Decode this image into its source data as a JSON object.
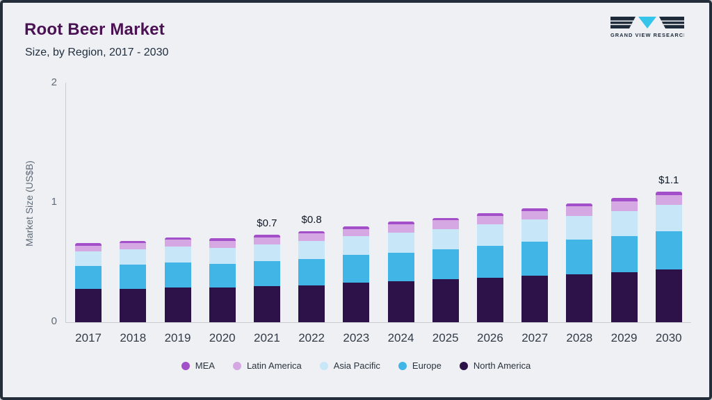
{
  "header": {
    "title": "Root Beer Market",
    "subtitle": "Size, by Region, 2017 - 2030"
  },
  "logo": {
    "brand": "GRAND VIEW RESEARCH"
  },
  "chart_data": {
    "type": "bar",
    "stacked": true,
    "title": "Root Beer Market Size, by Region, 2017 - 2030",
    "xlabel": "",
    "ylabel": "Market Size (US$B)",
    "ylim": [
      0,
      2
    ],
    "yticks": [
      0,
      1,
      2
    ],
    "grid": false,
    "legend_position": "bottom",
    "categories": [
      "2017",
      "2018",
      "2019",
      "2020",
      "2021",
      "2022",
      "2023",
      "2024",
      "2025",
      "2026",
      "2027",
      "2028",
      "2029",
      "2030"
    ],
    "series": [
      {
        "name": "North America",
        "color": "#2d1249",
        "values": [
          0.28,
          0.28,
          0.29,
          0.29,
          0.3,
          0.31,
          0.33,
          0.34,
          0.36,
          0.37,
          0.39,
          0.4,
          0.42,
          0.44
        ]
      },
      {
        "name": "Europe",
        "color": "#41b6e6",
        "values": [
          0.19,
          0.2,
          0.21,
          0.2,
          0.21,
          0.22,
          0.23,
          0.24,
          0.25,
          0.27,
          0.28,
          0.29,
          0.3,
          0.32
        ]
      },
      {
        "name": "Asia Pacific",
        "color": "#c7e7f8",
        "values": [
          0.12,
          0.13,
          0.13,
          0.13,
          0.14,
          0.15,
          0.16,
          0.17,
          0.17,
          0.18,
          0.19,
          0.2,
          0.21,
          0.22
        ]
      },
      {
        "name": "Latin America",
        "color": "#d5a7e3",
        "values": [
          0.05,
          0.05,
          0.06,
          0.06,
          0.06,
          0.06,
          0.06,
          0.07,
          0.07,
          0.07,
          0.07,
          0.08,
          0.08,
          0.08
        ]
      },
      {
        "name": "MEA",
        "color": "#a24fc9",
        "values": [
          0.02,
          0.02,
          0.02,
          0.02,
          0.02,
          0.02,
          0.02,
          0.02,
          0.02,
          0.02,
          0.02,
          0.02,
          0.03,
          0.03
        ]
      }
    ],
    "annotations": [
      {
        "category": "2021",
        "text": "$0.7"
      },
      {
        "category": "2022",
        "text": "$0.8"
      },
      {
        "category": "2030",
        "text": "$1.1"
      }
    ],
    "legend": [
      "MEA",
      "Latin America",
      "Asia Pacific",
      "Europe",
      "North America"
    ]
  }
}
